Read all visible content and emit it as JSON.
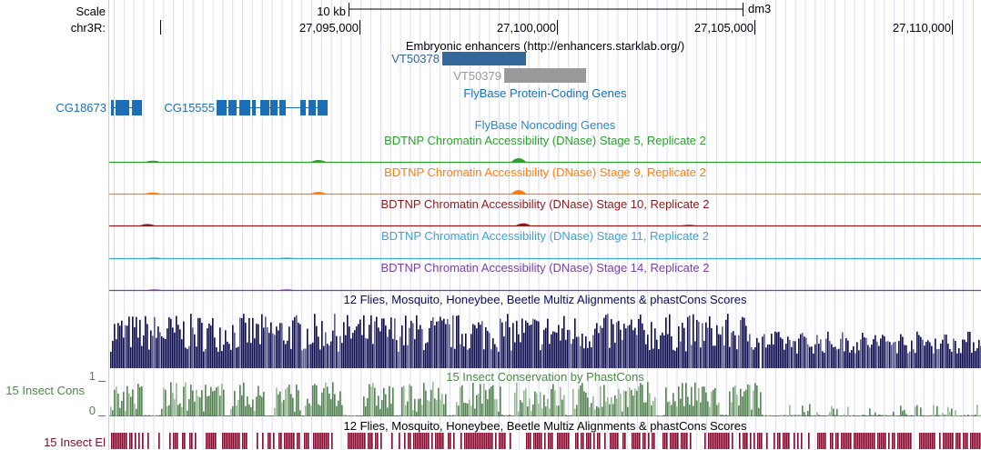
{
  "ruler": {
    "scale_label": "Scale",
    "scale_bar_label": "10 kb",
    "assembly": "dm3",
    "chrom_label": "chr3R:",
    "positions": [
      "27,095,000",
      "27,100,000",
      "27,105,000",
      "27,110,000"
    ]
  },
  "tracks": {
    "enhancers": {
      "title": "Embryonic enhancers (http://enhancers.starklab.org/)",
      "items": [
        {
          "name": "VT50378",
          "color": "#336699"
        },
        {
          "name": "VT50379",
          "color": "#999999"
        }
      ]
    },
    "protein_coding": {
      "title": "FlyBase Protein-Coding Genes",
      "color": "#1a6fb8",
      "genes": [
        "CG18673",
        "CG15555"
      ]
    },
    "noncoding": {
      "title": "FlyBase Noncoding Genes",
      "color": "#2a88cc"
    },
    "dnase": [
      {
        "title": "BDTNP Chromatin Accessibility (DNase) Stage 5, Replicate 2",
        "color": "#2ca02c"
      },
      {
        "title": "BDTNP Chromatin Accessibility (DNase) Stage 9, Replicate 2",
        "color": "#ff7f0e"
      },
      {
        "title": "BDTNP Chromatin Accessibility (DNase) Stage 10, Replicate 2",
        "color": "#8c1c1c"
      },
      {
        "title": "BDTNP Chromatin Accessibility (DNase) Stage 11, Replicate 2",
        "color": "#3ba4d6"
      },
      {
        "title": "BDTNP Chromatin Accessibility (DNase) Stage 14, Replicate 2",
        "color": "#7a3fa8"
      }
    ],
    "multiz": {
      "title": "12 Flies, Mosquito, Honeybee, Beetle Multiz Alignments & phastCons Scores",
      "color": "#0a0a66"
    },
    "cons": {
      "title": "15 Insect Conservation by PhastCons",
      "side_label": "15 Insect Cons",
      "axis_max": "1",
      "axis_min": "0",
      "color": "#4a8a45"
    },
    "elements": {
      "title": "12 Flies, Mosquito, Honeybee, Beetle Multiz Alignments & phastCons Scores",
      "side_label": "15 Insect El",
      "color": "#7a0f2e"
    }
  }
}
